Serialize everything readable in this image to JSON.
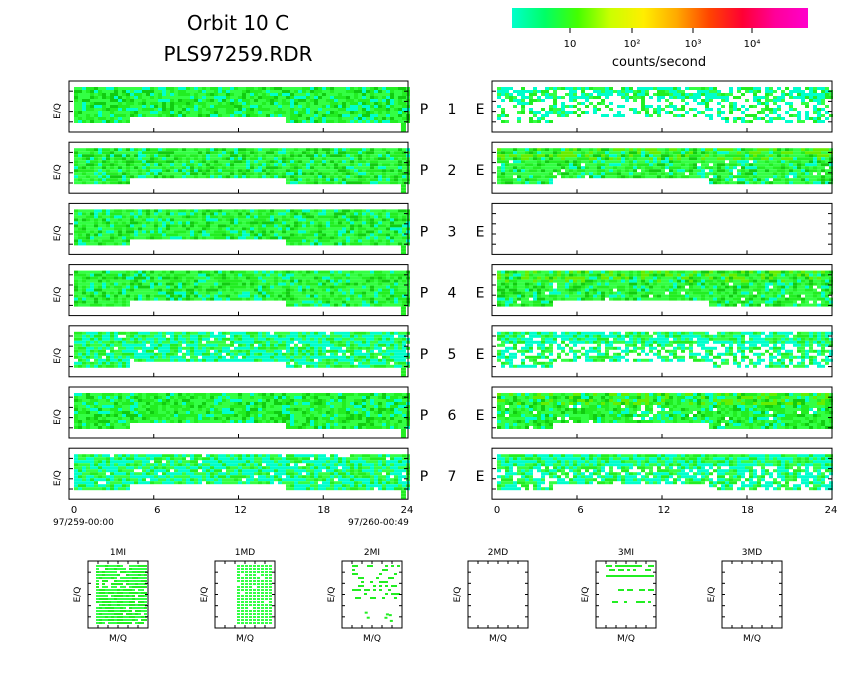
{
  "header": {
    "title": "Orbit 10 C",
    "subtitle": "PLS97259.RDR"
  },
  "colorbar": {
    "label": "counts/second",
    "ticks": [
      "10",
      "10²",
      "10³",
      "10⁴"
    ],
    "colors": [
      "#00ffcc",
      "#00ff66",
      "#44ff00",
      "#ccff00",
      "#ffee00",
      "#ffaa00",
      "#ff4400",
      "#ff0033",
      "#ff0099",
      "#ff00cc"
    ]
  },
  "colors": {
    "cyan": "#00ffcc",
    "green_light": "#33ff44",
    "green_mid": "#22ee22",
    "green_dark": "#11cc11",
    "axis": "#000000"
  },
  "ylabel": "E/Q",
  "panel_labels": [
    {
      "p": "P",
      "n": "1",
      "e": "E"
    },
    {
      "p": "P",
      "n": "2",
      "e": "E"
    },
    {
      "p": "P",
      "n": "3",
      "e": "E"
    },
    {
      "p": "P",
      "n": "4",
      "e": "E"
    },
    {
      "p": "P",
      "n": "5",
      "e": "E"
    },
    {
      "p": "P",
      "n": "6",
      "e": "E"
    },
    {
      "p": "P",
      "n": "7",
      "e": "E"
    }
  ],
  "xaxis": {
    "ticks": [
      "0",
      "6",
      "12",
      "18",
      "24"
    ],
    "start_label": "97/259-00:00",
    "end_label": "97/260-00:49"
  },
  "chart_data": {
    "type": "heatmap",
    "xlim": [
      0,
      24
    ],
    "colorscale": "log",
    "colorscale_unit": "counts/second",
    "p_panels": [
      {
        "detector": "P1",
        "density": 0.95,
        "level": "green",
        "gap_x": [
          4.2,
          15.2
        ],
        "corner_x": 23.5
      },
      {
        "detector": "P2",
        "density": 0.97,
        "level": "green",
        "gap_x": [
          4.2,
          15.2
        ],
        "corner_x": 23.5
      },
      {
        "detector": "P3",
        "density": 0.97,
        "level": "green",
        "gap_x": [
          4.2,
          15.2
        ],
        "corner_x": 23.5
      },
      {
        "detector": "P4",
        "density": 0.97,
        "level": "green",
        "gap_x": [
          4.2,
          15.2
        ],
        "corner_x": 23.5
      },
      {
        "detector": "P5",
        "density": 0.9,
        "level": "cyan",
        "gap_x": [
          4.2,
          15.2
        ],
        "corner_x": 23.5
      },
      {
        "detector": "P6",
        "density": 0.97,
        "level": "green",
        "gap_x": [
          4.2,
          15.2
        ],
        "corner_x": 23.5
      },
      {
        "detector": "P7",
        "density": 0.9,
        "level": "cyan",
        "gap_x": [
          4.2,
          15.2
        ],
        "corner_x": 23.5
      }
    ],
    "e_panels": [
      {
        "detector": "E1",
        "density": 0.45,
        "level": "cyan"
      },
      {
        "detector": "E2",
        "density": 0.95,
        "level": "green"
      },
      {
        "detector": "E3",
        "density": 0,
        "level": "none"
      },
      {
        "detector": "E4",
        "density": 0.97,
        "level": "green"
      },
      {
        "detector": "E5",
        "density": 0.6,
        "level": "cyan"
      },
      {
        "detector": "E6",
        "density": 0.95,
        "level": "green"
      },
      {
        "detector": "E7",
        "density": 0.75,
        "level": "cyan"
      }
    ],
    "small_panels": [
      {
        "title": "1MI",
        "xlabel": "M/Q",
        "ylabel": "E/Q",
        "pattern": "dense"
      },
      {
        "title": "1MD",
        "xlabel": "M/Q",
        "ylabel": "E/Q",
        "pattern": "columns"
      },
      {
        "title": "2MI",
        "xlabel": "M/Q",
        "ylabel": "E/Q",
        "pattern": "sparse"
      },
      {
        "title": "2MD",
        "xlabel": "M/Q",
        "ylabel": "E/Q",
        "pattern": "empty"
      },
      {
        "title": "3MI",
        "xlabel": "M/Q",
        "ylabel": "E/Q",
        "pattern": "rows"
      },
      {
        "title": "3MD",
        "xlabel": "M/Q",
        "ylabel": "E/Q",
        "pattern": "empty"
      }
    ]
  }
}
